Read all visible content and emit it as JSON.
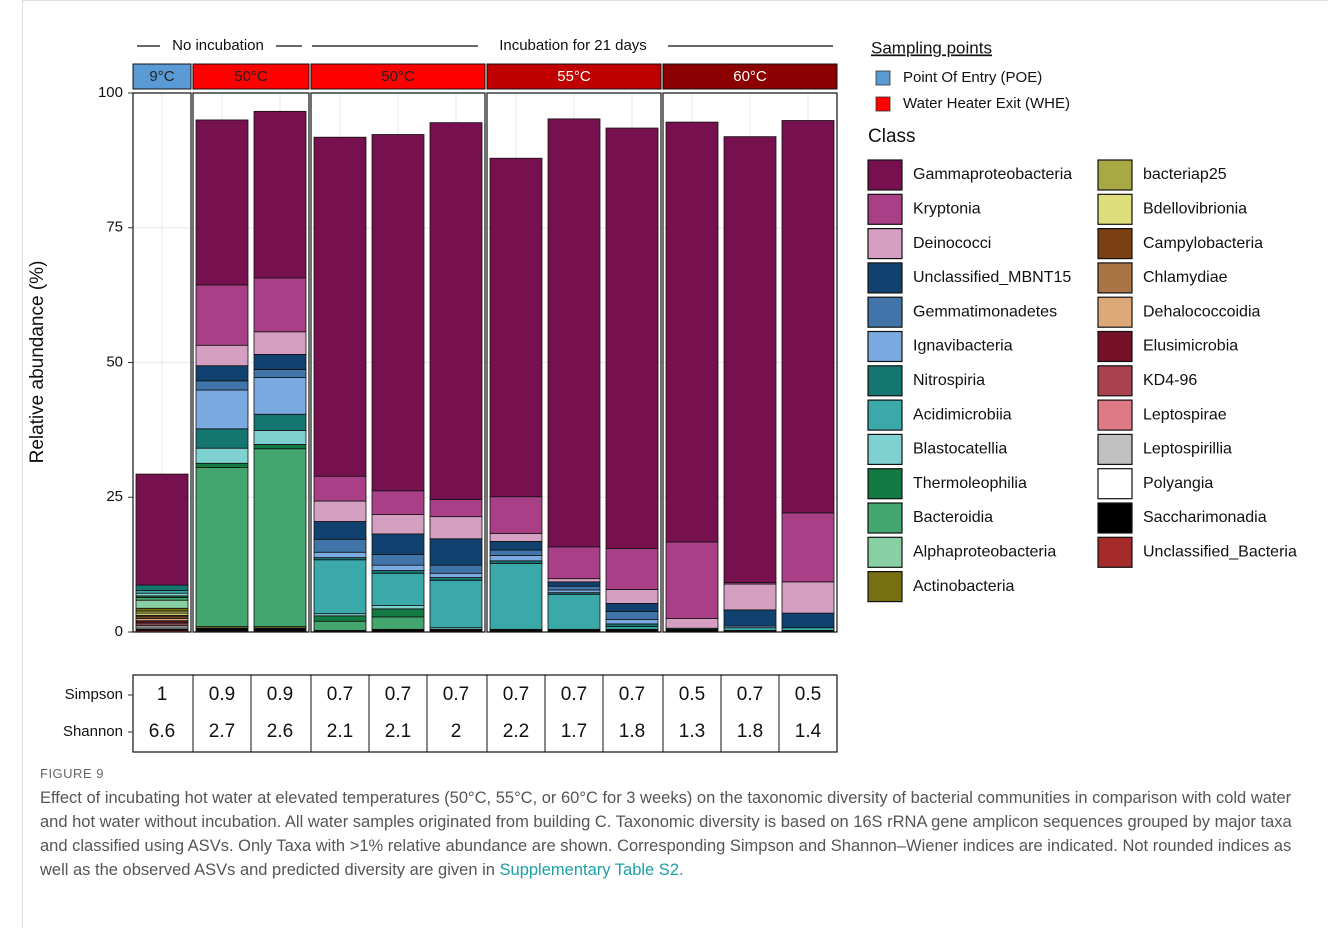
{
  "chart_data": {
    "type": "stacked_bar",
    "group_headers": [
      {
        "label": "No incubation"
      },
      {
        "label": "Incubation for 21 days"
      }
    ],
    "panels": [
      {
        "label": "9°C",
        "color": "#5b9bd5"
      },
      {
        "label": "50°C",
        "color": "#ff0000"
      },
      {
        "label": "50°C",
        "color": "#ff0000"
      },
      {
        "label": "55°C",
        "color": "#c00000"
      },
      {
        "label": "60°C",
        "color": "#8b0000"
      }
    ],
    "categories": [
      null,
      null,
      null,
      null,
      null,
      null,
      null,
      null,
      null,
      null,
      null,
      null
    ],
    "ylabel": "Relative abundance (%)",
    "ylim": [
      0,
      100
    ],
    "yticks": [
      0,
      25,
      50,
      75,
      100
    ],
    "grid": true,
    "sampling_legend": {
      "title": "Sampling points",
      "items": [
        {
          "name": "Point Of Entry (POE)",
          "color": "#5b9bd5"
        },
        {
          "name": "Water Heater Exit (WHE)",
          "color": "#ff0000"
        }
      ]
    },
    "legend_title": "Class",
    "series": [
      {
        "name": "Gammaproteobacteria",
        "color": "#76104e",
        "values": [
          20.6,
          30.6,
          30.9,
          62.9,
          66.1,
          69.9,
          62.8,
          79.4,
          78,
          77.9,
          82.7,
          72.8
        ]
      },
      {
        "name": "Kryptonia",
        "color": "#a93f87",
        "values": [
          0,
          11.2,
          10,
          4.6,
          4.4,
          3.2,
          6.8,
          5.9,
          7.6,
          14.2,
          0.3,
          12.8
        ]
      },
      {
        "name": "Deinococci",
        "color": "#d49fc0",
        "values": [
          0,
          3.8,
          4.2,
          3.8,
          3.6,
          4.1,
          1.5,
          0.6,
          2.6,
          1.8,
          4.8,
          5.8
        ]
      },
      {
        "name": "Unclassified_MBNT15",
        "color": "#11426f",
        "values": [
          0,
          2.8,
          2.8,
          3.3,
          3.8,
          4.9,
          1.6,
          0.8,
          1.5,
          0,
          3,
          2.7
        ]
      },
      {
        "name": "Gemmatimonadetes",
        "color": "#4175aa",
        "values": [
          0,
          1.7,
          1.5,
          2.4,
          2,
          1.5,
          1,
          0.7,
          1.5,
          0,
          0,
          0
        ]
      },
      {
        "name": "Ignavibacteria",
        "color": "#7aaae0",
        "values": [
          0,
          7.2,
          6.8,
          1,
          1,
          0.8,
          1,
          0.5,
          0.8,
          0,
          0.3,
          0
        ]
      },
      {
        "name": "Nitrospiria",
        "color": "#147571",
        "values": [
          1,
          3.6,
          3,
          0.4,
          0.5,
          0.5,
          0.5,
          0.3,
          0.5,
          0.2,
          0,
          0
        ]
      },
      {
        "name": "Acidimicrobiia",
        "color": "#3ba8aa",
        "values": [
          0.5,
          0,
          0,
          10,
          6,
          8.8,
          12.2,
          6.5,
          0.5,
          0,
          0.5,
          0.5
        ]
      },
      {
        "name": "Blastocatellia",
        "color": "#7fd1d1",
        "values": [
          0.5,
          2.8,
          2.6,
          0.4,
          0.6,
          0.3,
          0,
          0,
          0,
          0,
          0,
          0
        ]
      },
      {
        "name": "Thermoleophilia",
        "color": "#137a43",
        "values": [
          0.3,
          0.8,
          0.8,
          1,
          1.5,
          0,
          0,
          0,
          0,
          0,
          0,
          0
        ]
      },
      {
        "name": "Bacteroidia",
        "color": "#43a66e",
        "values": [
          0.5,
          29.5,
          33,
          1.7,
          2.3,
          0,
          0,
          0,
          0,
          0,
          0,
          0
        ]
      },
      {
        "name": "Alphaproteobacteria",
        "color": "#88cfa4",
        "values": [
          1.5,
          0,
          0,
          0,
          0,
          0,
          0,
          0,
          0,
          0,
          0,
          0
        ]
      },
      {
        "name": "Actinobacteria",
        "color": "#786f12",
        "values": [
          0.5,
          0.3,
          0.3,
          0,
          0,
          0,
          0,
          0,
          0,
          0,
          0,
          0
        ]
      },
      {
        "name": "bacteriap25",
        "color": "#a8a845",
        "values": [
          0.4,
          0,
          0,
          0,
          0,
          0,
          0,
          0,
          0,
          0,
          0,
          0
        ]
      },
      {
        "name": "Bdellovibrionia",
        "color": "#dede7c",
        "values": [
          0.4,
          0,
          0,
          0,
          0,
          0,
          0,
          0,
          0,
          0,
          0,
          0
        ]
      },
      {
        "name": "Campylobacteria",
        "color": "#7a3f12",
        "values": [
          0.3,
          0,
          0,
          0,
          0,
          0,
          0,
          0,
          0,
          0,
          0,
          0
        ]
      },
      {
        "name": "Chlamydiae",
        "color": "#a97544",
        "values": [
          0.3,
          0,
          0,
          0,
          0,
          0,
          0,
          0,
          0,
          0,
          0,
          0
        ]
      },
      {
        "name": "Dehalococcoidia",
        "color": "#dda978",
        "values": [
          0.4,
          0,
          0,
          0,
          0,
          0,
          0,
          0,
          0,
          0,
          0,
          0
        ]
      },
      {
        "name": "Elusimicrobia",
        "color": "#741126",
        "values": [
          0.3,
          0,
          0,
          0,
          0,
          0,
          0,
          0,
          0,
          0,
          0,
          0
        ]
      },
      {
        "name": "KD4-96",
        "color": "#a8424f",
        "values": [
          0.3,
          0,
          0,
          0,
          0,
          0,
          0,
          0,
          0,
          0,
          0,
          0
        ]
      },
      {
        "name": "Leptospirae",
        "color": "#de7a86",
        "values": [
          0.3,
          0,
          0,
          0,
          0,
          0,
          0,
          0,
          0,
          0,
          0,
          0
        ]
      },
      {
        "name": "Leptospirillia",
        "color": "#c0c0c0",
        "values": [
          0.3,
          0,
          0,
          0,
          0,
          0,
          0,
          0,
          0,
          0,
          0,
          0
        ]
      },
      {
        "name": "Polyangia",
        "color": "#ffffff",
        "values": [
          0.3,
          0,
          0,
          0,
          0,
          0,
          0,
          0,
          0,
          0,
          0,
          0
        ]
      },
      {
        "name": "Saccharimonadia",
        "color": "#000000",
        "values": [
          0.3,
          0.5,
          0.5,
          0.3,
          0.5,
          0.5,
          0.5,
          0.5,
          0.5,
          0.5,
          0.3,
          0.3
        ]
      },
      {
        "name": "Unclassified_Bacteria",
        "color": "#a52a2a",
        "values": [
          0.3,
          0.2,
          0.2,
          0,
          0,
          0,
          0,
          0,
          0,
          0,
          0,
          0
        ]
      }
    ],
    "index_table": {
      "rows": [
        {
          "label": "Simpson",
          "values": [
            1,
            0.9,
            0.9,
            0.7,
            0.7,
            0.7,
            0.7,
            0.7,
            0.7,
            0.5,
            0.7,
            0.5
          ]
        },
        {
          "label": "Shannon",
          "values": [
            6.6,
            2.7,
            2.6,
            2.1,
            2.1,
            2,
            2.2,
            1.7,
            1.8,
            1.3,
            1.8,
            1.4
          ]
        }
      ]
    }
  },
  "caption": {
    "figure_label": "FIGURE 9",
    "text": "Effect of incubating hot water at elevated temperatures (50°C, 55°C, or 60°C for 3 weeks) on the taxonomic diversity of bacterial communities in comparison with cold water and hot water without incubation. All water samples originated from building C. Taxonomic diversity is based on 16S rRNA gene amplicon sequences grouped by major taxa and classified using ASVs. Only Taxa with >1% relative abundance are shown. Corresponding Simpson and Shannon–Wiener indices are indicated. Not rounded indices as well as the observed ASVs and predicted diversity are given in",
    "link": "Supplementary Table S2."
  }
}
